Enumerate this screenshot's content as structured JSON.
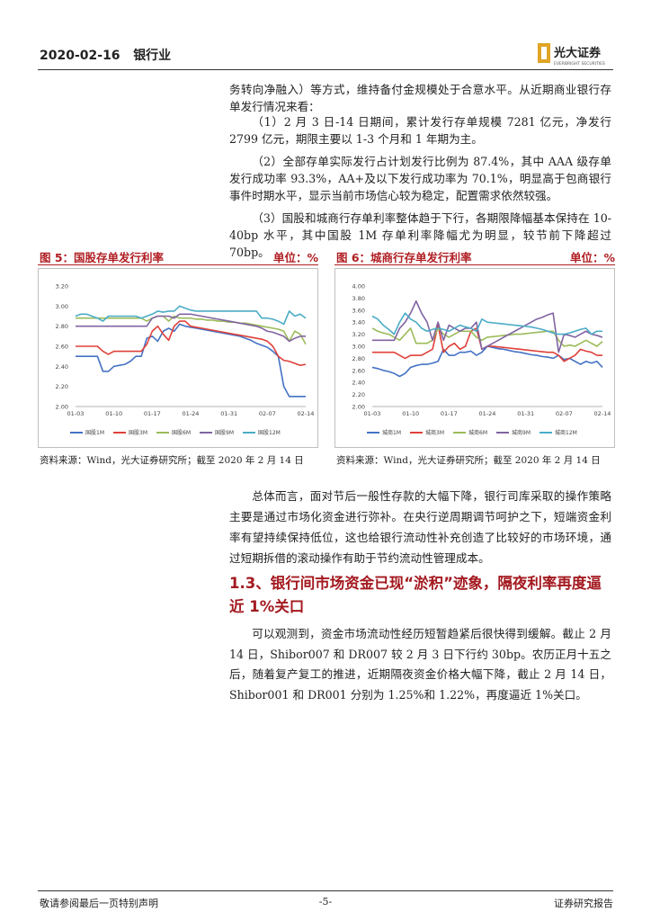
{
  "header": {
    "date": "2020-02-16",
    "sector": "银行业",
    "logo": "光大证券",
    "logo_en": "EVERBRIGHT SECURITIES"
  },
  "paragraphs_top": [
    "务转向净融入）等方式，维持备付金规模处于合意水平。从近期商业银行存单发行情况来看：",
    "（1）2 月 3 日-14 日期间，累计发行存单规模 7281 亿元，净发行 2799 亿元，期限主要以 1-3 个月和 1 年期为主。",
    "（2）全部存单实际发行占计划发行比例为 87.4%，其中 AAA 级存单发行成功率 93.3%，AA+及以下发行成功率为 70.1%，明显高于包商银行事件时期水平，显示当前市场信心较为稳定，配置需求依然较强。",
    "（3）国股和城商行存单利率整体趋于下行，各期限降幅基本保持在 10-40bp 水平，其中国股 1M 存单利率降幅尤为明显，较节前下降超过 70bp。"
  ],
  "chart_data": [
    {
      "type": "line",
      "title": "图 5：国股存单发行利率",
      "unit": "单位：%",
      "source": "资料来源：Wind，光大证券研究所；截至 2020 年 2 月 14 日",
      "categories": [
        "01-03",
        null,
        null,
        null,
        null,
        null,
        null,
        "01-10",
        null,
        null,
        null,
        null,
        null,
        null,
        "01-17",
        null,
        null,
        null,
        null,
        null,
        null,
        "01-24",
        null,
        null,
        null,
        null,
        null,
        null,
        "01-31",
        null,
        null,
        null,
        null,
        null,
        null,
        "02-07",
        null,
        null,
        null,
        null,
        null,
        null,
        "02-14"
      ],
      "ylim": [
        2,
        3.2
      ],
      "yticks": [
        {
          "value": 2,
          "label": "2.00"
        },
        {
          "value": 2.2,
          "label": "2.20"
        },
        {
          "value": 2.4,
          "label": "2.40"
        },
        {
          "value": 2.6,
          "label": "2.60"
        },
        {
          "value": 2.8,
          "label": "2.80"
        },
        {
          "value": 3,
          "label": "3.00"
        },
        {
          "value": 3.2,
          "label": "3.20"
        }
      ],
      "grid": false,
      "series": [
        {
          "name": "国股1M",
          "color": "#4472c4",
          "values": [
            2.5,
            2.5,
            2.5,
            2.5,
            2.5,
            2.35,
            2.35,
            2.4,
            2.41,
            2.42,
            2.45,
            2.5,
            2.5,
            2.68,
            2.7,
            2.65,
            2.75,
            2.78,
            2.75,
            2.82,
            2.8,
            2.79,
            2.78,
            2.77,
            2.76,
            2.75,
            2.74,
            2.73,
            2.72,
            2.71,
            2.7,
            2.68,
            2.66,
            2.63,
            2.61,
            2.59,
            2.55,
            2.5,
            2.2,
            2.1,
            2.1,
            2.1,
            2.1
          ]
        },
        {
          "name": "国股3M",
          "color": "#e0403a",
          "values": [
            2.6,
            2.6,
            2.6,
            2.6,
            2.6,
            2.55,
            2.52,
            2.55,
            2.55,
            2.55,
            2.55,
            2.55,
            2.55,
            2.62,
            2.75,
            2.8,
            2.72,
            2.66,
            2.8,
            2.85,
            2.85,
            2.8,
            2.79,
            2.78,
            2.77,
            2.76,
            2.75,
            2.74,
            2.73,
            2.72,
            2.71,
            2.7,
            2.69,
            2.68,
            2.67,
            2.65,
            2.6,
            2.5,
            2.46,
            2.45,
            2.43,
            2.41,
            2.42
          ]
        },
        {
          "name": "国股6M",
          "color": "#9bbb59",
          "values": [
            2.88,
            2.88,
            2.88,
            2.88,
            2.88,
            2.88,
            2.88,
            2.88,
            2.88,
            2.88,
            2.88,
            2.88,
            2.88,
            2.85,
            2.88,
            2.9,
            2.9,
            2.85,
            2.9,
            2.88,
            2.88,
            2.88,
            2.87,
            2.87,
            2.86,
            2.86,
            2.85,
            2.85,
            2.84,
            2.84,
            2.83,
            2.83,
            2.82,
            2.81,
            2.8,
            2.79,
            2.78,
            2.77,
            2.75,
            2.65,
            2.75,
            2.72,
            2.62
          ]
        },
        {
          "name": "国股9M",
          "color": "#8064a2",
          "values": [
            2.8,
            2.8,
            2.8,
            2.8,
            2.8,
            2.8,
            2.8,
            2.8,
            2.8,
            2.8,
            2.8,
            2.8,
            2.8,
            2.8,
            2.88,
            2.9,
            2.9,
            2.9,
            2.88,
            2.92,
            2.92,
            2.92,
            2.91,
            2.9,
            2.89,
            2.88,
            2.87,
            2.86,
            2.85,
            2.84,
            2.83,
            2.82,
            2.81,
            2.8,
            2.78,
            2.75,
            2.74,
            2.72,
            2.7,
            2.65,
            2.68,
            2.7,
            2.7
          ]
        },
        {
          "name": "国股12M",
          "color": "#4bacc6",
          "values": [
            2.9,
            2.92,
            2.92,
            2.9,
            2.88,
            2.85,
            2.9,
            2.9,
            2.9,
            2.9,
            2.9,
            2.9,
            2.88,
            2.9,
            2.92,
            2.95,
            2.94,
            2.95,
            2.95,
            3.0,
            2.98,
            2.96,
            2.95,
            2.95,
            2.95,
            2.95,
            2.95,
            2.95,
            2.95,
            2.95,
            2.95,
            2.95,
            2.95,
            2.95,
            2.88,
            2.88,
            2.87,
            2.85,
            2.82,
            2.95,
            2.9,
            2.92,
            2.88
          ]
        }
      ]
    },
    {
      "type": "line",
      "title": "图 6：城商行存单发行利率",
      "unit": "单位：%",
      "source": "资料来源：Wind，光大证券研究所；截至 2020 年 2 月 14 日",
      "categories": [
        "01-03",
        null,
        null,
        null,
        null,
        null,
        null,
        "01-10",
        null,
        null,
        null,
        null,
        null,
        null,
        "01-17",
        null,
        null,
        null,
        null,
        null,
        null,
        "01-24",
        null,
        null,
        null,
        null,
        null,
        null,
        "01-31",
        null,
        null,
        null,
        null,
        null,
        null,
        "02-07",
        null,
        null,
        null,
        null,
        null,
        null,
        "02-14"
      ],
      "ylim": [
        2,
        4
      ],
      "yticks": [
        {
          "value": 2,
          "label": "2.00"
        },
        {
          "value": 2.2,
          "label": "2.20"
        },
        {
          "value": 2.4,
          "label": "2.40"
        },
        {
          "value": 2.6,
          "label": "2.60"
        },
        {
          "value": 2.8,
          "label": "2.80"
        },
        {
          "value": 3,
          "label": "3.00"
        },
        {
          "value": 3.2,
          "label": "3.20"
        },
        {
          "value": 3.4,
          "label": "3.40"
        },
        {
          "value": 3.6,
          "label": "3.60"
        },
        {
          "value": 3.8,
          "label": "3.80"
        },
        {
          "value": 4,
          "label": "4.00"
        }
      ],
      "grid": false,
      "series": [
        {
          "name": "城商1M",
          "color": "#4472c4",
          "values": [
            2.65,
            2.63,
            2.6,
            2.58,
            2.55,
            2.5,
            2.55,
            2.65,
            2.68,
            2.7,
            2.7,
            2.72,
            2.75,
            2.95,
            2.85,
            2.85,
            2.9,
            2.9,
            2.92,
            2.85,
            2.9,
            3.0,
            2.98,
            2.96,
            2.95,
            2.93,
            2.91,
            2.9,
            2.88,
            2.86,
            2.85,
            2.83,
            2.82,
            2.8,
            2.85,
            2.78,
            2.8,
            2.75,
            2.7,
            2.75,
            2.72,
            2.75,
            2.65
          ]
        },
        {
          "name": "城商3M",
          "color": "#e0403a",
          "values": [
            2.9,
            2.9,
            2.9,
            2.9,
            2.9,
            2.85,
            2.8,
            2.85,
            2.85,
            2.85,
            2.9,
            2.95,
            3.35,
            2.9,
            3.0,
            3.05,
            2.95,
            3.0,
            3.25,
            3.3,
            2.95,
            3.0,
            3.0,
            2.99,
            2.98,
            2.97,
            2.96,
            2.95,
            2.94,
            2.93,
            2.92,
            2.91,
            2.9,
            2.9,
            2.85,
            2.75,
            2.8,
            2.85,
            2.95,
            2.92,
            2.9,
            2.85,
            2.85
          ]
        },
        {
          "name": "城商6M",
          "color": "#9bbb59",
          "values": [
            3.3,
            3.25,
            3.22,
            3.2,
            3.15,
            3.1,
            3.2,
            3.3,
            3.05,
            3.05,
            3.05,
            3.1,
            3.3,
            3.2,
            3.15,
            3.2,
            3.25,
            3.25,
            3.25,
            3.15,
            3.1,
            3.15,
            3.16,
            3.17,
            3.18,
            3.19,
            3.2,
            3.2,
            3.21,
            3.22,
            3.23,
            3.24,
            3.25,
            3.25,
            3.1,
            3.0,
            3.02,
            3.0,
            3.05,
            3.1,
            3.05,
            3.0,
            3.08
          ]
        },
        {
          "name": "城商9M",
          "color": "#8064a2",
          "values": [
            3.1,
            3.1,
            3.1,
            3.1,
            3.1,
            3.3,
            3.4,
            3.55,
            3.75,
            3.55,
            3.4,
            3.1,
            3.4,
            3.1,
            3.35,
            3.3,
            3.25,
            3.3,
            3.3,
            3.4,
            2.95,
            3.0,
            3.05,
            3.1,
            3.15,
            3.2,
            3.25,
            3.3,
            3.35,
            3.4,
            3.45,
            3.48,
            3.52,
            3.55,
            2.9,
            3.2,
            3.18,
            3.15,
            3.2,
            3.25,
            3.2,
            3.18,
            3.15
          ]
        },
        {
          "name": "城商12M",
          "color": "#4bacc6",
          "values": [
            3.5,
            3.45,
            3.35,
            3.28,
            3.2,
            3.4,
            3.55,
            3.45,
            3.4,
            3.3,
            3.25,
            3.28,
            3.3,
            3.28,
            3.25,
            3.3,
            3.35,
            3.32,
            3.3,
            3.25,
            3.45,
            3.4,
            3.39,
            3.38,
            3.37,
            3.36,
            3.35,
            3.34,
            3.33,
            3.32,
            3.3,
            3.28,
            3.25,
            3.22,
            3.2,
            3.2,
            3.22,
            3.25,
            3.28,
            3.3,
            3.2,
            3.25,
            3.25
          ]
        }
      ]
    }
  ],
  "body": {
    "paragraph_1": "总体而言，面对节后一般性存款的大幅下降，银行司库采取的操作策略主要是通过市场化资金进行弥补。在央行逆周期调节呵护之下，短端资金利率有望持续保持低位，这也给银行流动性补充创造了比较好的市场环境，通过短期拆借的滚动操作有助于节约流动性管理成本。",
    "heading": "1.3、银行间市场资金已现“淤积”迹象，隔夜利率再度逼近 1%关口",
    "paragraph_2": "可以观测到，资金市场流动性经历短暂趋紧后很快得到缓解。截止 2 月 14 日，Shibor007 和 DR007 较 2 月 3 日下行约 30bp。农历正月十五之后，随着复产复工的推进，近期隔夜资金价格大幅下降，截止 2 月 14 日，Shibor001 和 DR001 分别为 1.25%和 1.22%，再度逼近 1%关口。"
  },
  "footer": {
    "left": "敬请参阅最后一页特别声明",
    "page": "-5-",
    "right": "证券研究报告"
  }
}
